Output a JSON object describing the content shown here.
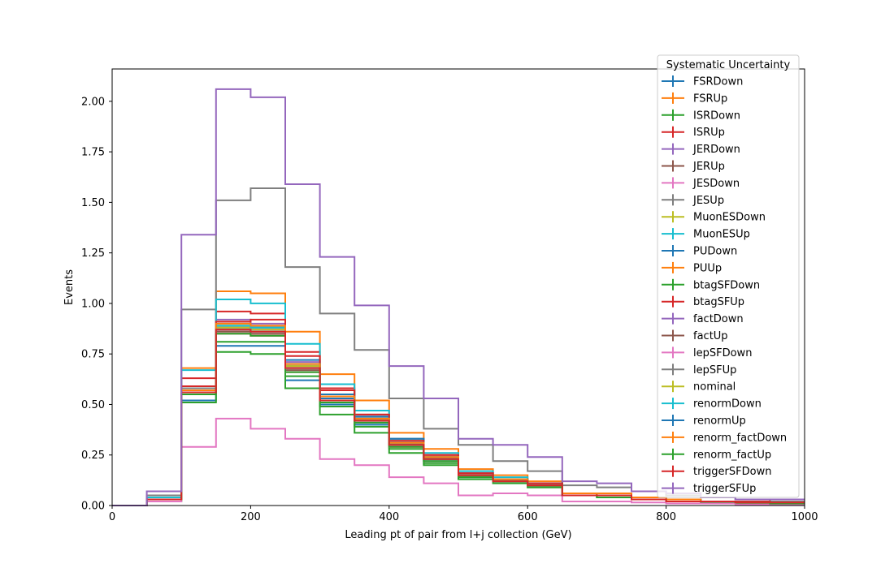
{
  "chart_data": {
    "type": "line",
    "drawstyle": "steps-post",
    "xlabel": "Leading pt of pair from l+j collection (GeV)",
    "ylabel": "Events",
    "xlim": [
      0,
      1000
    ],
    "ylim": [
      0,
      2.16
    ],
    "xticks": [
      0,
      200,
      400,
      600,
      800,
      1000
    ],
    "xtick_labels": [
      "0",
      "200",
      "400",
      "600",
      "800",
      "1000"
    ],
    "yticks": [
      0,
      0.25,
      0.5,
      0.75,
      1.0,
      1.25,
      1.5,
      1.75,
      2.0
    ],
    "ytick_labels": [
      "0.00",
      "0.25",
      "0.50",
      "0.75",
      "1.00",
      "1.25",
      "1.50",
      "1.75",
      "2.00"
    ],
    "grid": false,
    "legend": {
      "title": "Systematic Uncertainty",
      "placement": "upper-right-overlapping"
    },
    "bin_edges": [
      0,
      50,
      100,
      150,
      200,
      250,
      300,
      350,
      400,
      450,
      500,
      550,
      600,
      650,
      700,
      750,
      800,
      850,
      900,
      950,
      1000
    ],
    "series": [
      {
        "name": "FSRDown",
        "color": "#1f77b4",
        "values": [
          0.0,
          0.03,
          0.52,
          0.79,
          0.79,
          0.62,
          0.5,
          0.4,
          0.3,
          0.22,
          0.14,
          0.12,
          0.1,
          0.05,
          0.05,
          0.03,
          0.02,
          0.02,
          0.015,
          0.015
        ]
      },
      {
        "name": "FSRUp",
        "color": "#ff7f0e",
        "values": [
          0.0,
          0.04,
          0.68,
          1.06,
          1.05,
          0.86,
          0.65,
          0.52,
          0.36,
          0.28,
          0.18,
          0.15,
          0.12,
          0.06,
          0.06,
          0.04,
          0.03,
          0.02,
          0.02,
          0.02
        ]
      },
      {
        "name": "ISRDown",
        "color": "#2ca02c",
        "values": [
          0.0,
          0.02,
          0.51,
          0.76,
          0.75,
          0.58,
          0.45,
          0.36,
          0.26,
          0.2,
          0.13,
          0.11,
          0.09,
          0.05,
          0.04,
          0.03,
          0.02,
          0.015,
          0.01,
          0.01
        ]
      },
      {
        "name": "ISRUp",
        "color": "#d62728",
        "values": [
          0.0,
          0.04,
          0.63,
          0.96,
          0.95,
          0.76,
          0.58,
          0.45,
          0.33,
          0.25,
          0.16,
          0.13,
          0.11,
          0.06,
          0.05,
          0.04,
          0.03,
          0.02,
          0.02,
          0.015
        ]
      },
      {
        "name": "JERDown",
        "color": "#9467bd",
        "values": [
          0.0,
          0.03,
          0.57,
          0.92,
          0.9,
          0.71,
          0.55,
          0.44,
          0.32,
          0.24,
          0.16,
          0.13,
          0.11,
          0.06,
          0.05,
          0.04,
          0.03,
          0.02,
          0.02,
          0.015
        ]
      },
      {
        "name": "JERUp",
        "color": "#8c564b",
        "values": [
          0.0,
          0.03,
          0.56,
          0.87,
          0.84,
          0.68,
          0.53,
          0.42,
          0.31,
          0.23,
          0.15,
          0.12,
          0.1,
          0.05,
          0.05,
          0.03,
          0.02,
          0.02,
          0.015,
          0.015
        ]
      },
      {
        "name": "JESDown",
        "color": "#e377c2",
        "values": [
          0.0,
          0.02,
          0.29,
          0.43,
          0.38,
          0.33,
          0.23,
          0.2,
          0.14,
          0.11,
          0.05,
          0.06,
          0.05,
          0.02,
          0.02,
          0.015,
          0.01,
          0.01,
          0.005,
          0.005
        ]
      },
      {
        "name": "JESUp",
        "color": "#7f7f7f",
        "values": [
          0.0,
          0.05,
          0.97,
          1.51,
          1.57,
          1.18,
          0.95,
          0.77,
          0.53,
          0.38,
          0.3,
          0.22,
          0.17,
          0.1,
          0.09,
          0.07,
          0.05,
          0.04,
          0.03,
          0.02
        ]
      },
      {
        "name": "MuonESDown",
        "color": "#bcbd22",
        "values": [
          0.0,
          0.03,
          0.56,
          0.89,
          0.88,
          0.69,
          0.54,
          0.43,
          0.31,
          0.24,
          0.15,
          0.13,
          0.1,
          0.06,
          0.05,
          0.04,
          0.03,
          0.02,
          0.015,
          0.015
        ]
      },
      {
        "name": "MuonESUp",
        "color": "#17becf",
        "values": [
          0.0,
          0.04,
          0.67,
          1.02,
          1.0,
          0.8,
          0.6,
          0.47,
          0.33,
          0.26,
          0.17,
          0.14,
          0.11,
          0.06,
          0.05,
          0.04,
          0.03,
          0.02,
          0.02,
          0.015
        ]
      },
      {
        "name": "PUDown",
        "color": "#1f77b4",
        "values": [
          0.0,
          0.03,
          0.57,
          0.88,
          0.88,
          0.72,
          0.55,
          0.44,
          0.33,
          0.24,
          0.16,
          0.13,
          0.11,
          0.06,
          0.05,
          0.04,
          0.03,
          0.02,
          0.02,
          0.015
        ]
      },
      {
        "name": "PUUp",
        "color": "#ff7f0e",
        "values": [
          0.0,
          0.03,
          0.55,
          0.85,
          0.84,
          0.66,
          0.51,
          0.41,
          0.29,
          0.23,
          0.15,
          0.12,
          0.1,
          0.05,
          0.05,
          0.03,
          0.02,
          0.02,
          0.015,
          0.015
        ]
      },
      {
        "name": "btagSFDown",
        "color": "#2ca02c",
        "values": [
          0.0,
          0.03,
          0.55,
          0.81,
          0.81,
          0.64,
          0.49,
          0.39,
          0.28,
          0.21,
          0.14,
          0.12,
          0.09,
          0.05,
          0.04,
          0.03,
          0.02,
          0.02,
          0.015,
          0.01
        ]
      },
      {
        "name": "btagSFUp",
        "color": "#d62728",
        "values": [
          0.0,
          0.03,
          0.59,
          0.91,
          0.92,
          0.74,
          0.57,
          0.45,
          0.32,
          0.25,
          0.16,
          0.13,
          0.11,
          0.06,
          0.05,
          0.04,
          0.03,
          0.02,
          0.02,
          0.015
        ]
      },
      {
        "name": "factDown",
        "color": "#9467bd",
        "values": [
          0.0,
          0.03,
          0.57,
          0.88,
          0.87,
          0.69,
          0.54,
          0.43,
          0.31,
          0.24,
          0.15,
          0.13,
          0.1,
          0.06,
          0.05,
          0.04,
          0.03,
          0.02,
          0.015,
          0.015
        ]
      },
      {
        "name": "factUp",
        "color": "#8c564b",
        "values": [
          0.0,
          0.03,
          0.55,
          0.86,
          0.85,
          0.67,
          0.52,
          0.42,
          0.3,
          0.23,
          0.15,
          0.12,
          0.1,
          0.05,
          0.05,
          0.03,
          0.02,
          0.02,
          0.015,
          0.015
        ]
      },
      {
        "name": "lepSFDown",
        "color": "#e377c2",
        "values": [
          0.0,
          0.03,
          0.55,
          0.85,
          0.84,
          0.66,
          0.51,
          0.41,
          0.29,
          0.22,
          0.15,
          0.12,
          0.1,
          0.05,
          0.04,
          0.03,
          0.02,
          0.02,
          0.015,
          0.01
        ]
      },
      {
        "name": "lepSFUp",
        "color": "#7f7f7f",
        "values": [
          0.0,
          0.03,
          0.58,
          0.9,
          0.89,
          0.7,
          0.54,
          0.43,
          0.31,
          0.24,
          0.15,
          0.13,
          0.1,
          0.06,
          0.05,
          0.04,
          0.03,
          0.02,
          0.015,
          0.015
        ]
      },
      {
        "name": "nominal",
        "color": "#bcbd22",
        "values": [
          0.0,
          0.03,
          0.56,
          0.88,
          0.87,
          0.69,
          0.53,
          0.42,
          0.3,
          0.23,
          0.15,
          0.12,
          0.1,
          0.05,
          0.05,
          0.03,
          0.02,
          0.02,
          0.015,
          0.015
        ]
      },
      {
        "name": "renormDown",
        "color": "#17becf",
        "values": [
          0.0,
          0.03,
          0.57,
          0.89,
          0.88,
          0.7,
          0.54,
          0.43,
          0.31,
          0.24,
          0.15,
          0.13,
          0.1,
          0.06,
          0.05,
          0.04,
          0.03,
          0.02,
          0.015,
          0.015
        ]
      },
      {
        "name": "renormUp",
        "color": "#1f77b4",
        "values": [
          0.0,
          0.03,
          0.56,
          0.87,
          0.86,
          0.68,
          0.53,
          0.42,
          0.3,
          0.23,
          0.15,
          0.12,
          0.1,
          0.05,
          0.05,
          0.03,
          0.02,
          0.02,
          0.015,
          0.015
        ]
      },
      {
        "name": "renorm_factDown",
        "color": "#ff7f0e",
        "values": [
          0.0,
          0.03,
          0.57,
          0.9,
          0.89,
          0.7,
          0.54,
          0.43,
          0.31,
          0.24,
          0.15,
          0.13,
          0.1,
          0.06,
          0.05,
          0.04,
          0.03,
          0.02,
          0.015,
          0.015
        ]
      },
      {
        "name": "renorm_factUp",
        "color": "#2ca02c",
        "values": [
          0.0,
          0.03,
          0.55,
          0.85,
          0.84,
          0.66,
          0.51,
          0.41,
          0.29,
          0.22,
          0.15,
          0.12,
          0.1,
          0.05,
          0.04,
          0.03,
          0.02,
          0.02,
          0.015,
          0.01
        ]
      },
      {
        "name": "triggerSFDown",
        "color": "#d62728",
        "values": [
          0.0,
          0.03,
          0.56,
          0.87,
          0.86,
          0.68,
          0.52,
          0.42,
          0.3,
          0.23,
          0.15,
          0.12,
          0.1,
          0.05,
          0.05,
          0.03,
          0.02,
          0.02,
          0.015,
          0.015
        ]
      },
      {
        "name": "triggerSFUp",
        "color": "#9467bd",
        "values": [
          0.0,
          0.07,
          1.34,
          2.06,
          2.02,
          1.59,
          1.23,
          0.99,
          0.69,
          0.53,
          0.33,
          0.3,
          0.24,
          0.12,
          0.11,
          0.07,
          0.06,
          0.04,
          0.03,
          0.03
        ]
      }
    ]
  }
}
